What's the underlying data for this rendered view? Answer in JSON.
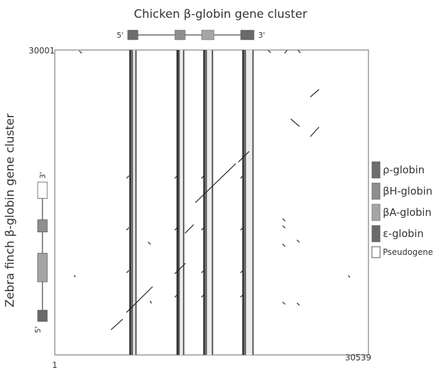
{
  "chart_data": {
    "type": "scatter",
    "title": "Chicken β-globin gene cluster",
    "xlabel": "",
    "ylabel": "Zebra finch β-globin gene cluster",
    "x_range": [
      1,
      30539
    ],
    "y_range": [
      1,
      30001
    ],
    "x_tick_labels": [
      "1",
      "30539"
    ],
    "y_tick_labels": [
      "30001"
    ],
    "grid": false,
    "legend_placement": "right",
    "top_cluster": {
      "five_prime": "5'",
      "three_prime": "3'",
      "genes": [
        {
          "type": "rho",
          "start": 7100,
          "end": 8100
        },
        {
          "type": "betaH",
          "start": 11700,
          "end": 12700
        },
        {
          "type": "betaA",
          "start": 14300,
          "end": 15500
        },
        {
          "type": "epsilon",
          "start": 18100,
          "end": 19400
        }
      ]
    },
    "side_cluster": {
      "five_prime": "5'",
      "three_prime": "3'",
      "genes": [
        {
          "type": "epsilon",
          "start": 3300,
          "end": 4400
        },
        {
          "type": "betaA",
          "start": 7200,
          "end": 10000
        },
        {
          "type": "betaH",
          "start": 12100,
          "end": 13300
        },
        {
          "type": "pseudogene",
          "start": 15400,
          "end": 17000
        }
      ]
    },
    "legend": [
      {
        "key": "rho",
        "label": "ρ-globin",
        "color": "#6d6d6d"
      },
      {
        "key": "betaH",
        "label": "βH-globin",
        "color": "#8e8e8e"
      },
      {
        "key": "betaA",
        "label": "βA-globin",
        "color": "#a5a5a5"
      },
      {
        "key": "epsilon",
        "label": "ε-globin",
        "color": "#6a6a6a"
      },
      {
        "key": "pseudogene",
        "label": "Pseudogene",
        "color": "#ffffff"
      }
    ],
    "vertical_bands": [
      {
        "x0": 7250,
        "x1": 8000,
        "lines": [
          7350,
          7550,
          7900
        ]
      },
      {
        "x0": 11850,
        "x1": 12600,
        "lines": [
          11950,
          12100,
          12550
        ]
      },
      {
        "x0": 14450,
        "x1": 15450,
        "lines": [
          14550,
          14750,
          15350
        ]
      },
      {
        "x0": 18250,
        "x1": 19350,
        "lines": [
          18350,
          18550,
          19300
        ]
      }
    ],
    "segments": [
      {
        "x1": 5500,
        "y1": 2500,
        "x2": 6600,
        "y2": 3500
      },
      {
        "x1": 7000,
        "y1": 4200,
        "x2": 9000,
        "y2": 6200
      },
      {
        "x1": 9000,
        "y1": 6200,
        "x2": 9500,
        "y2": 6700
      },
      {
        "x1": 11700,
        "y1": 8000,
        "x2": 12700,
        "y2": 9000
      },
      {
        "x1": 12700,
        "y1": 12000,
        "x2": 13500,
        "y2": 12800
      },
      {
        "x1": 13700,
        "y1": 15000,
        "x2": 17600,
        "y2": 18800
      },
      {
        "x1": 17900,
        "y1": 19000,
        "x2": 18900,
        "y2": 20000
      },
      {
        "x1": 24900,
        "y1": 21500,
        "x2": 25700,
        "y2": 22400
      },
      {
        "x1": 24900,
        "y1": 25400,
        "x2": 25700,
        "y2": 26100
      },
      {
        "x1": 23000,
        "y1": 23200,
        "x2": 23800,
        "y2": 22500
      },
      {
        "x1": 2400,
        "y1": 29900,
        "x2": 2600,
        "y2": 29700
      },
      {
        "x1": 7000,
        "y1": 17400,
        "x2": 7200,
        "y2": 17600
      },
      {
        "x1": 7000,
        "y1": 12300,
        "x2": 7200,
        "y2": 12500
      },
      {
        "x1": 7000,
        "y1": 8100,
        "x2": 7200,
        "y2": 8300
      },
      {
        "x1": 11700,
        "y1": 17400,
        "x2": 11900,
        "y2": 17600
      },
      {
        "x1": 11700,
        "y1": 12300,
        "x2": 11900,
        "y2": 12500
      },
      {
        "x1": 11700,
        "y1": 5700,
        "x2": 11900,
        "y2": 5900
      },
      {
        "x1": 14300,
        "y1": 17400,
        "x2": 14500,
        "y2": 17600
      },
      {
        "x1": 14300,
        "y1": 12300,
        "x2": 14500,
        "y2": 12500
      },
      {
        "x1": 14300,
        "y1": 8100,
        "x2": 14500,
        "y2": 8300
      },
      {
        "x1": 14300,
        "y1": 5700,
        "x2": 14500,
        "y2": 5900
      },
      {
        "x1": 18100,
        "y1": 17400,
        "x2": 18300,
        "y2": 17600
      },
      {
        "x1": 18100,
        "y1": 12300,
        "x2": 18300,
        "y2": 12500
      },
      {
        "x1": 18100,
        "y1": 8100,
        "x2": 18300,
        "y2": 8300
      },
      {
        "x1": 18100,
        "y1": 5700,
        "x2": 18300,
        "y2": 5900
      },
      {
        "x1": 20800,
        "y1": 29950,
        "x2": 21000,
        "y2": 29750
      },
      {
        "x1": 22400,
        "y1": 29700,
        "x2": 22600,
        "y2": 29950
      },
      {
        "x1": 23700,
        "y1": 29950,
        "x2": 23900,
        "y2": 29750
      },
      {
        "x1": 22200,
        "y1": 13400,
        "x2": 22400,
        "y2": 13200
      },
      {
        "x1": 22200,
        "y1": 12700,
        "x2": 22400,
        "y2": 12500
      },
      {
        "x1": 22200,
        "y1": 10900,
        "x2": 22400,
        "y2": 10700
      },
      {
        "x1": 22200,
        "y1": 5200,
        "x2": 22400,
        "y2": 5000
      },
      {
        "x1": 23600,
        "y1": 5100,
        "x2": 23800,
        "y2": 4900
      },
      {
        "x1": 23600,
        "y1": 11300,
        "x2": 23800,
        "y2": 11100
      },
      {
        "x1": 9100,
        "y1": 11100,
        "x2": 9300,
        "y2": 10900
      },
      {
        "x1": 9300,
        "y1": 5300,
        "x2": 9400,
        "y2": 5100
      },
      {
        "x1": 1900,
        "y1": 7800,
        "x2": 2000,
        "y2": 7700
      },
      {
        "x1": 28600,
        "y1": 7800,
        "x2": 28700,
        "y2": 7650
      }
    ]
  }
}
